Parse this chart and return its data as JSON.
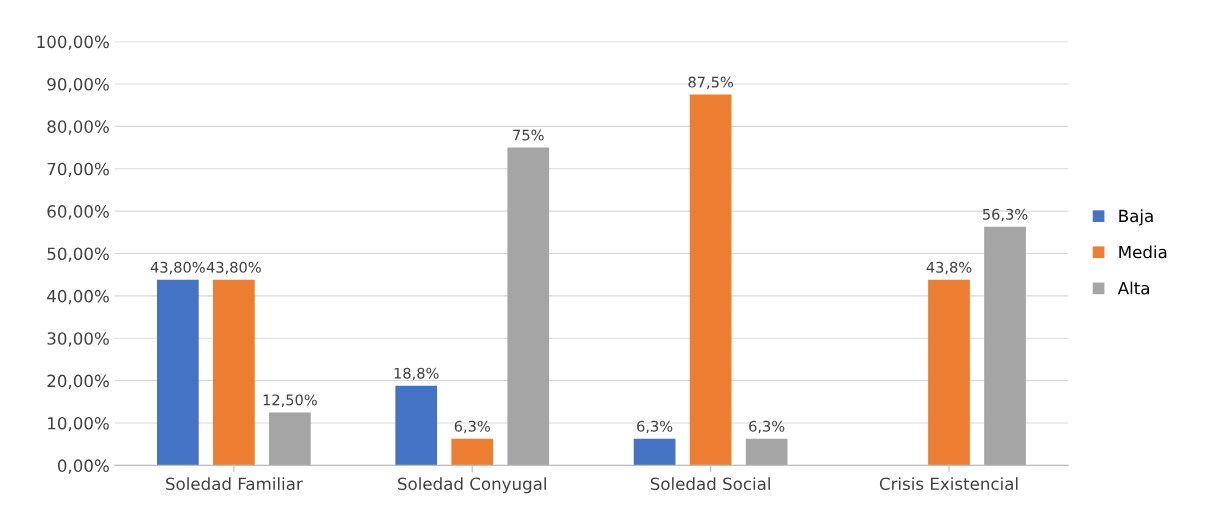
{
  "chart_data": {
    "type": "bar",
    "categories": [
      "Soledad Familiar",
      "Soledad Conyugal",
      "Soledad Social",
      "Crisis Existencial"
    ],
    "series": [
      {
        "name": "Baja",
        "color": "#4472c4",
        "values": [
          43.8,
          18.8,
          6.3,
          null
        ],
        "value_labels": [
          "43,80%",
          "18,8%",
          "6,3%",
          null
        ]
      },
      {
        "name": "Media",
        "color": "#ed7d31",
        "values": [
          43.8,
          6.3,
          87.5,
          43.8
        ],
        "value_labels": [
          "43,80%",
          "6,3%",
          "87,5%",
          "43,8%"
        ]
      },
      {
        "name": "Alta",
        "color": "#a5a5a5",
        "values": [
          12.5,
          75,
          6.3,
          56.3
        ],
        "value_labels": [
          "12,50%",
          "75%",
          "6,3%",
          "56,3%"
        ]
      }
    ],
    "ylim": [
      0,
      100
    ],
    "yticks": [
      {
        "value": 0,
        "label": "0,00%"
      },
      {
        "value": 10,
        "label": "10,00%"
      },
      {
        "value": 20,
        "label": "20,00%"
      },
      {
        "value": 30,
        "label": "30,00%"
      },
      {
        "value": 40,
        "label": "40,00%"
      },
      {
        "value": 50,
        "label": "50,00%"
      },
      {
        "value": 60,
        "label": "60,00%"
      },
      {
        "value": 70,
        "label": "70,00%"
      },
      {
        "value": 80,
        "label": "80,00%"
      },
      {
        "value": 90,
        "label": "90,00%"
      },
      {
        "value": 100,
        "label": "100,00%"
      }
    ],
    "grid": "y",
    "legend": "right"
  }
}
